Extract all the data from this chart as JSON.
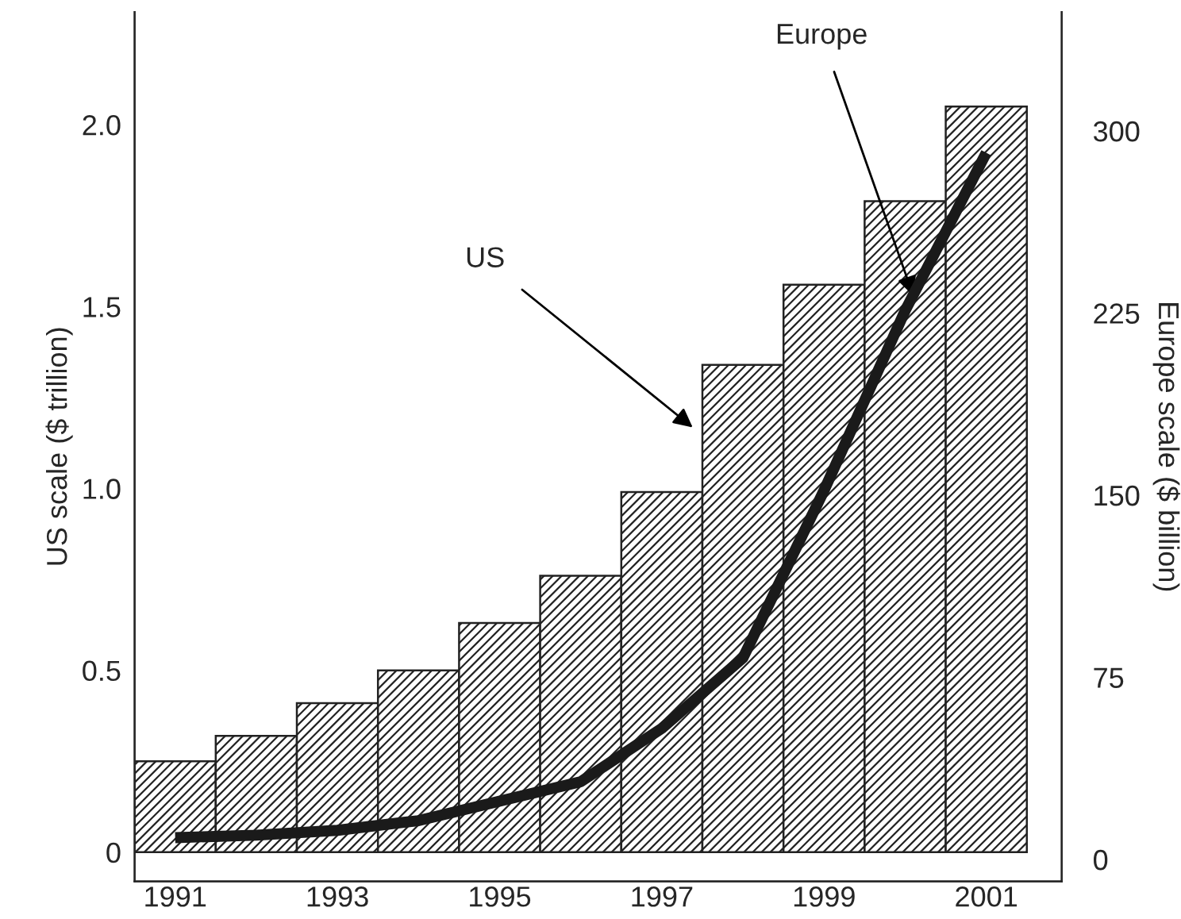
{
  "chart_data": {
    "type": "bar",
    "x": [
      1991,
      1992,
      1993,
      1994,
      1995,
      1996,
      1997,
      1998,
      1999,
      2000,
      2001
    ],
    "series": [
      {
        "color": "#222222",
        "values": [
          0.25,
          0.32,
          0.41,
          0.5,
          0.63,
          0.76,
          0.99,
          1.34,
          1.56,
          1.79,
          2.05
        ]
      },
      {
        "type": "line",
        "axis": "y2",
        "color": "#1a1a1a",
        "values": [
          9,
          10,
          12,
          16,
          24,
          32,
          54,
          83,
          152,
          226,
          291
        ]
      }
    ],
    "ylabel": "US scale ($ trillion)",
    "y2label": "Europe scale ($ billion)",
    "xlim": [
      1990.5,
      2001.93
    ],
    "xticks": [
      1991,
      1993,
      1995,
      1997,
      1999,
      2001
    ],
    "ylim": [
      -0.08,
      2.31
    ],
    "yticks": [
      {
        "value": 0,
        "label": "0"
      },
      {
        "value": 0.5,
        "label": "0.5"
      },
      {
        "value": 1,
        "label": "1.0"
      },
      {
        "value": 1.5,
        "label": "1.5"
      },
      {
        "value": 2,
        "label": "2.0"
      }
    ],
    "y2lim": [
      -9,
      349
    ],
    "y2ticks": [
      0,
      75,
      150,
      225,
      300
    ],
    "annotations": [
      "US",
      {
        "text": "Europe",
        "x": 2000.1,
        "y": 1.53
      }
    ],
    "grid": false,
    "legend": false,
    "marker": "none",
    "line_style": "solid"
  }
}
